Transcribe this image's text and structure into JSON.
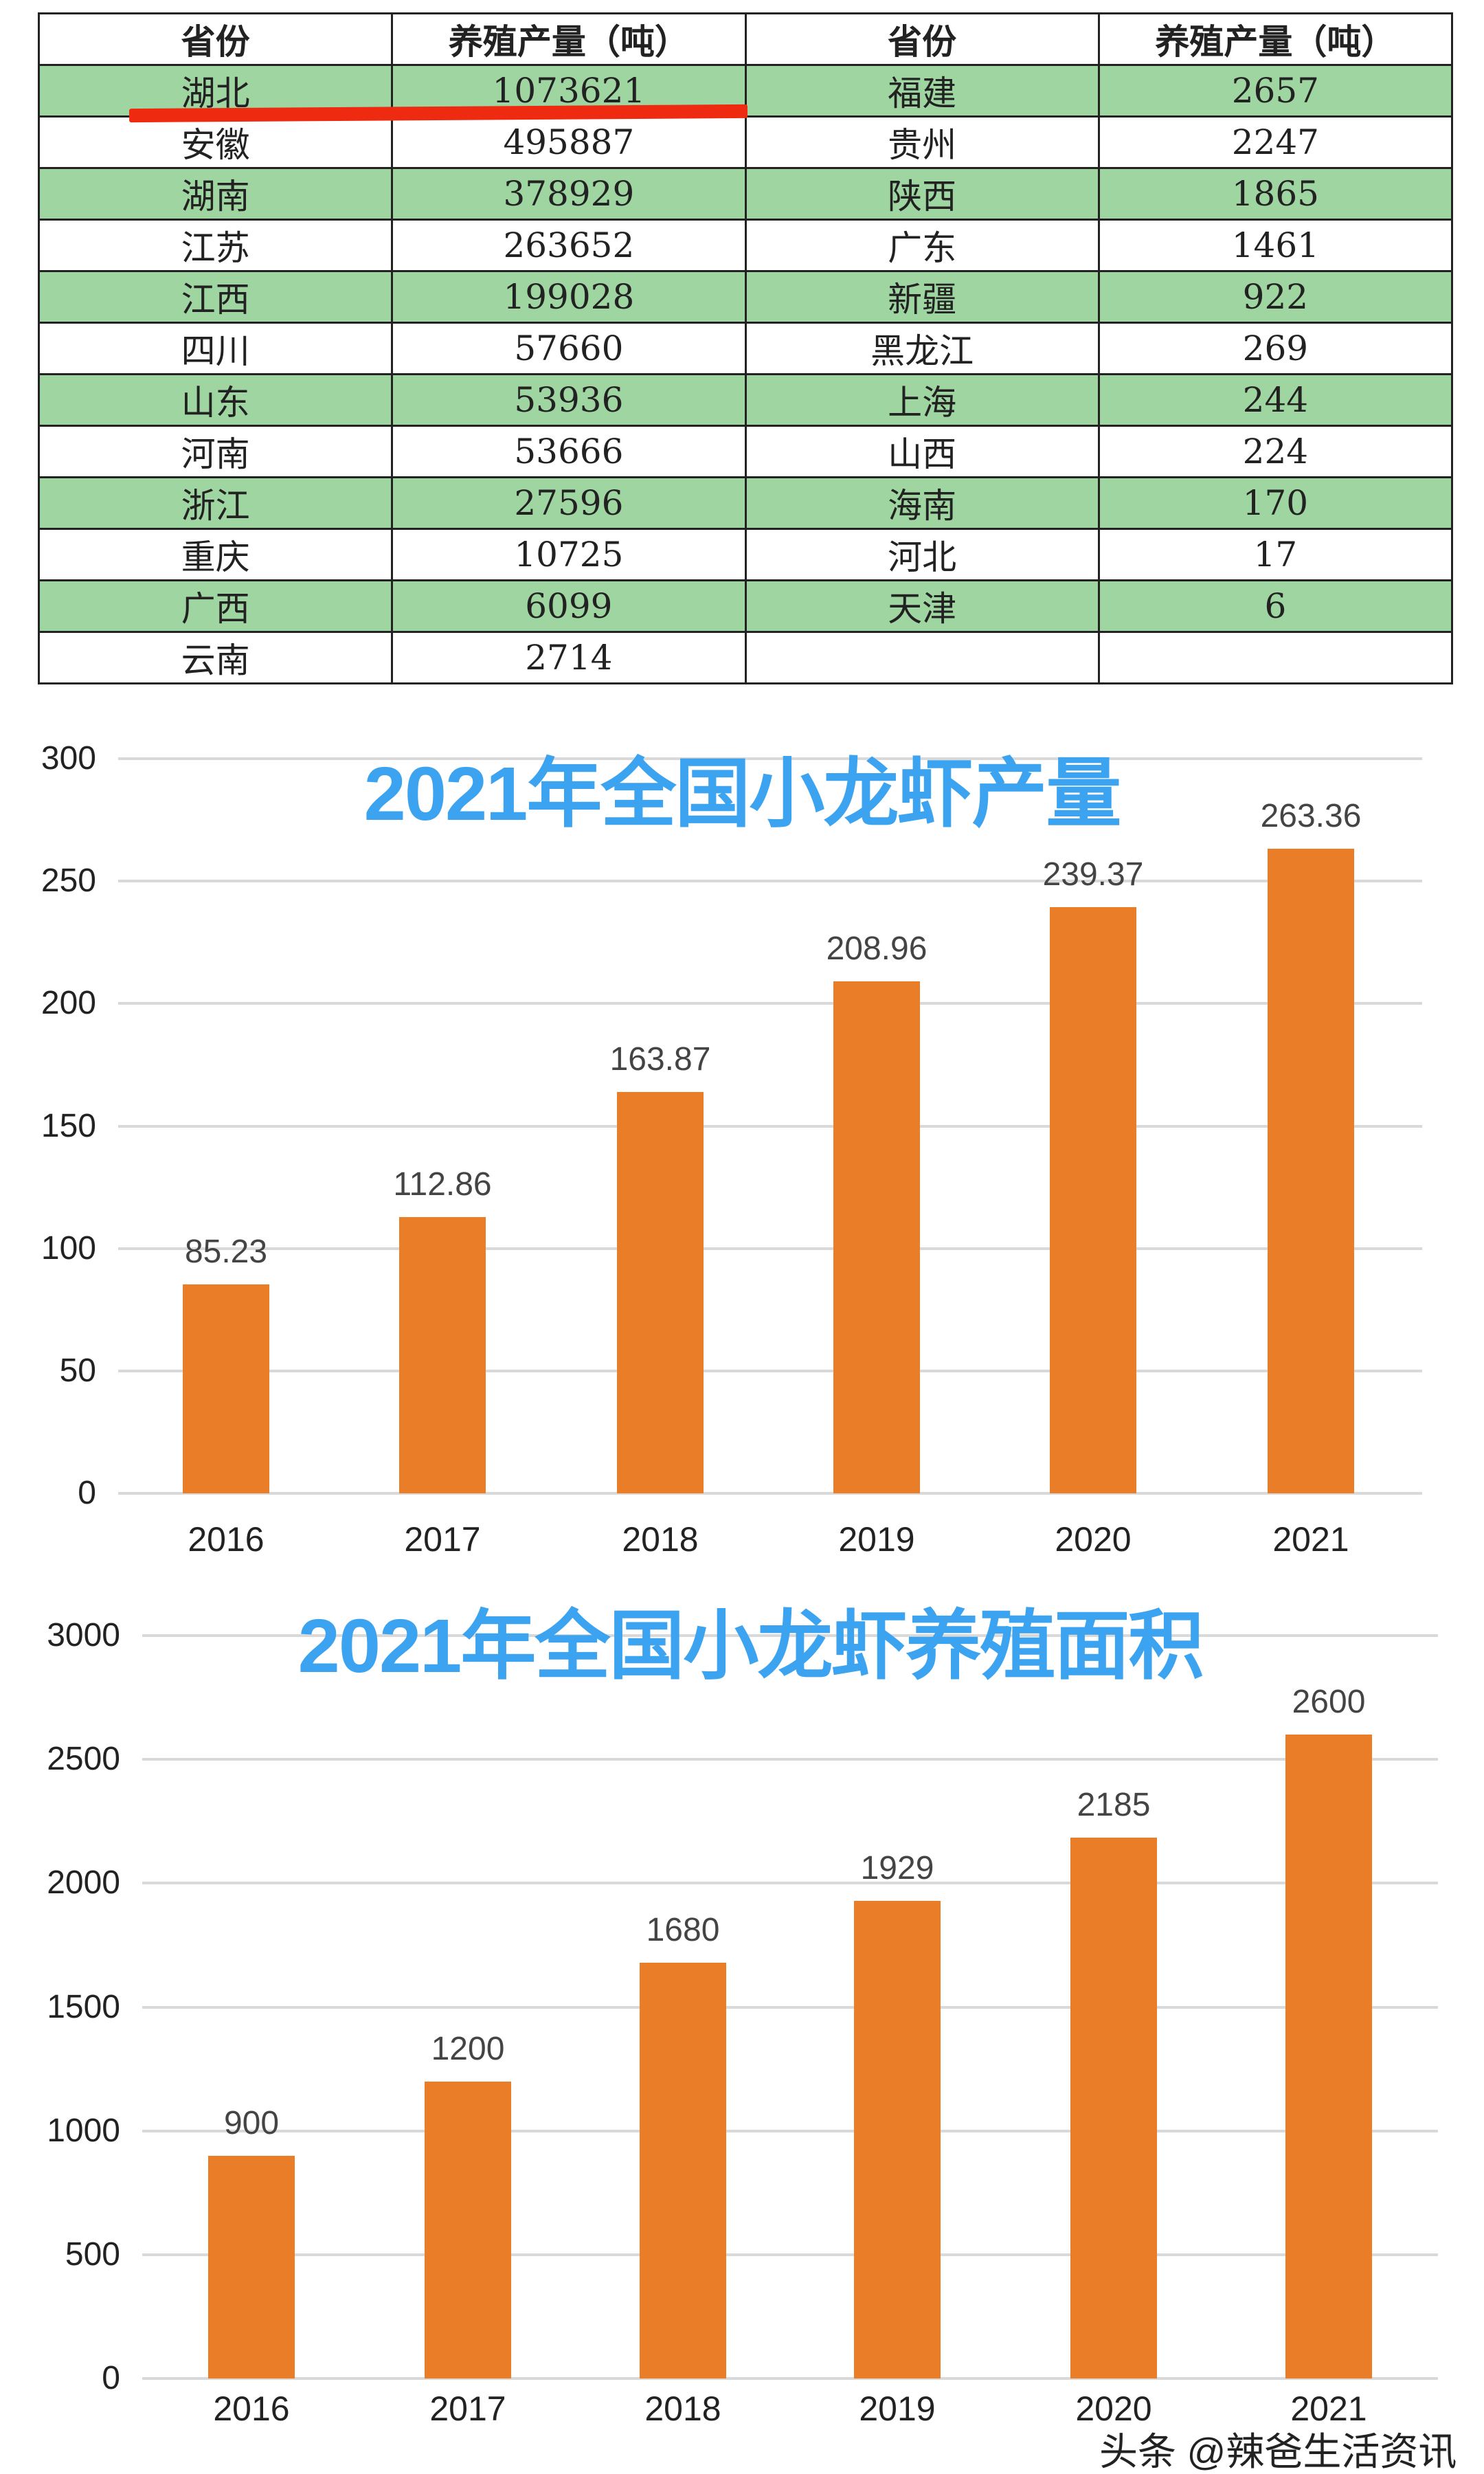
{
  "table": {
    "headers": [
      "省份",
      "养殖产量（吨）",
      "省份",
      "养殖产量（吨）"
    ],
    "rows": [
      [
        "湖北",
        "1073621",
        "福建",
        "2657"
      ],
      [
        "安徽",
        "495887",
        "贵州",
        "2247"
      ],
      [
        "湖南",
        "378929",
        "陕西",
        "1865"
      ],
      [
        "江苏",
        "263652",
        "广东",
        "1461"
      ],
      [
        "江西",
        "199028",
        "新疆",
        "922"
      ],
      [
        "四川",
        "57660",
        "黑龙江",
        "269"
      ],
      [
        "山东",
        "53936",
        "上海",
        "244"
      ],
      [
        "河南",
        "53666",
        "山西",
        "224"
      ],
      [
        "浙江",
        "27596",
        "海南",
        "170"
      ],
      [
        "重庆",
        "10725",
        "河北",
        "17"
      ],
      [
        "广西",
        "6099",
        "天津",
        "6"
      ],
      [
        "云南",
        "2714",
        "",
        ""
      ]
    ],
    "row_stripe_color": "#9fd5a0",
    "highlight_color": "#ee2a10"
  },
  "chart_data": [
    {
      "type": "bar",
      "title": "2021年全国小龙虾产量",
      "categories": [
        "2016",
        "2017",
        "2018",
        "2019",
        "2020",
        "2021"
      ],
      "values": [
        85.23,
        112.86,
        163.87,
        208.96,
        239.37,
        263.36
      ],
      "value_labels": [
        "85.23",
        "112.86",
        "163.87",
        "208.96",
        "239.37",
        "263.36"
      ],
      "ylim": [
        0,
        300
      ],
      "yticks": [
        "0",
        "50",
        "100",
        "150",
        "200",
        "250",
        "300"
      ],
      "grid": true,
      "bar_color": "#ea7d28",
      "title_color": "#3ba3ef"
    },
    {
      "type": "bar",
      "title": "2021年全国小龙虾养殖面积",
      "categories": [
        "2016",
        "2017",
        "2018",
        "2019",
        "2020",
        "2021"
      ],
      "values": [
        900,
        1200,
        1680,
        1929,
        2185,
        2600
      ],
      "value_labels": [
        "900",
        "1200",
        "1680",
        "1929",
        "2185",
        "2600"
      ],
      "ylim": [
        0,
        3000
      ],
      "yticks": [
        "0",
        "500",
        "1000",
        "1500",
        "2000",
        "2500",
        "3000"
      ],
      "grid": true,
      "bar_color": "#ea7d28",
      "title_color": "#3ba3ef"
    }
  ],
  "watermark": "头条 @辣爸生活资讯"
}
